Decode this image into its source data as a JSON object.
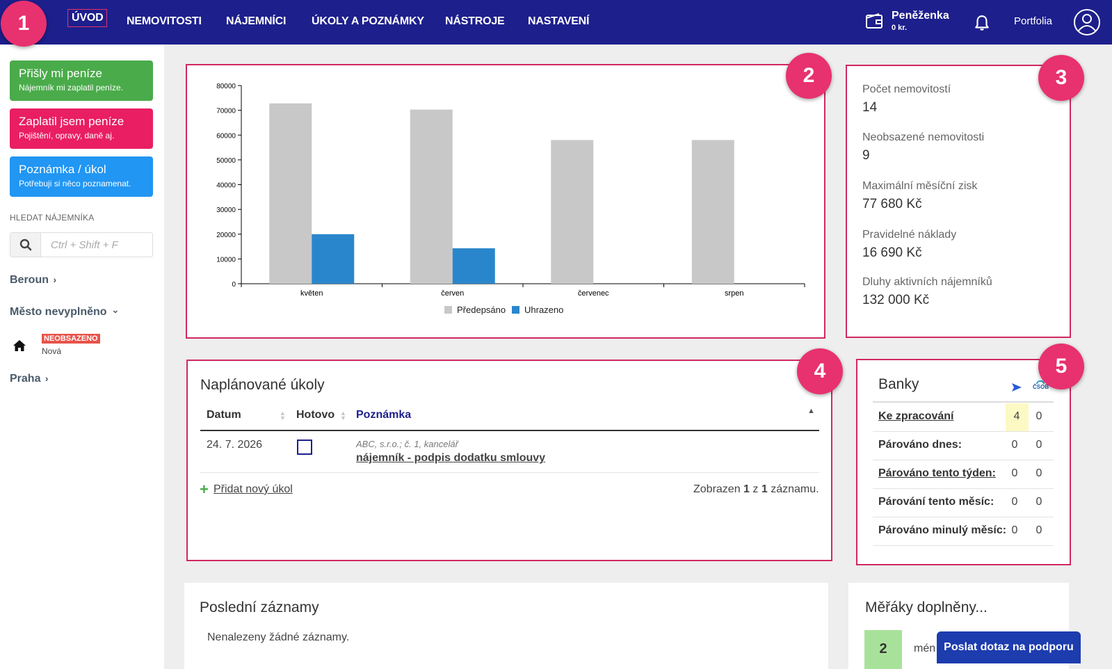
{
  "nav": {
    "items": [
      {
        "label": "ÚVOD",
        "active": true
      },
      {
        "label": "NEMOVITOSTI"
      },
      {
        "label": "NÁJEMNÍCI"
      },
      {
        "label": "ÚKOLY A POZNÁMKY"
      },
      {
        "label": "NÁSTROJE"
      },
      {
        "label": "NASTAVENÍ"
      }
    ],
    "wallet_title": "Peněženka",
    "wallet_amount": "0 kr.",
    "portfolia": "Portfolia"
  },
  "callouts": [
    "1",
    "2",
    "3",
    "4",
    "5"
  ],
  "sidebar": {
    "buttons": [
      {
        "title": "Přišly mi peníze",
        "subtitle": "Nájemník mi zaplatil peníze."
      },
      {
        "title": "Zaplatil jsem peníze",
        "subtitle": "Pojištění, opravy, daně aj."
      },
      {
        "title": "Poznámka / úkol",
        "subtitle": "Potřebuji si něco poznamenat."
      }
    ],
    "search_label": "HLEDAT NÁJEMNÍKA",
    "search_placeholder": "Ctrl + Shift + F",
    "cities": [
      {
        "name": "Beroun",
        "chevron": "›"
      },
      {
        "name": "Město nevyplněno",
        "chevron": "⌄"
      },
      {
        "name": "Praha",
        "chevron": "›"
      }
    ],
    "property": {
      "badge": "NEOBSAZENO",
      "name": "Nová"
    }
  },
  "chart_data": {
    "type": "bar",
    "categories": [
      "květen",
      "červen",
      "červenec",
      "srpen"
    ],
    "series": [
      {
        "name": "Předepsáno",
        "values": [
          72800,
          70300,
          58000,
          58000
        ],
        "color": "#c8c8c8"
      },
      {
        "name": "Uhrazeno",
        "values": [
          20000,
          14300,
          0,
          0
        ],
        "color": "#2a86cc"
      }
    ],
    "y_ticks": [
      "0",
      "10000",
      "20000",
      "30000",
      "40000",
      "50000",
      "60000",
      "70000",
      "80000"
    ],
    "ylim": [
      0,
      80000
    ],
    "legend": "bottom-center"
  },
  "stats": [
    {
      "label": "Počet nemovitostí",
      "value": "14",
      "color": "#333333"
    },
    {
      "label": "Neobsazené nemovitosti",
      "value": "9",
      "color": "#d81b30"
    },
    {
      "label": "Maximální měsíční zisk",
      "value": "77 680 Kč",
      "color": "#2e8b1e"
    },
    {
      "label": "Pravidelné náklady",
      "value": "16 690 Kč",
      "color": "#333333"
    },
    {
      "label": "Dluhy aktivních nájemníků",
      "value": "132 000 Kč",
      "color": "#d81b30"
    }
  ],
  "tasks": {
    "title": "Naplánované úkoly",
    "columns": [
      "Datum",
      "Hotovo",
      "Poznámka"
    ],
    "sort_indicator": "▲",
    "rows": [
      {
        "date": "24. 7. 2026",
        "done": false,
        "subtitle": "ABC, s.r.o.; č. 1, kancelář",
        "note": "nájemník - podpis dodatku smlouvy"
      }
    ],
    "add_label": "Přidat nový úkol",
    "showing_prefix": "Zobrazen",
    "showing_from": "1",
    "showing_mid": "z",
    "showing_total": "1",
    "showing_suffix": "záznamu."
  },
  "banks": {
    "title": "Banky",
    "rows": [
      {
        "label": "Ke zpracování",
        "v1": "4",
        "v2": "0",
        "link": true
      },
      {
        "label": "Párováno dnes:",
        "v1": "0",
        "v2": "0",
        "link": false
      },
      {
        "label": "Párováno tento týden:",
        "v1": "0",
        "v2": "0",
        "link": true
      },
      {
        "label": "Párování tento měsíc:",
        "v1": "0",
        "v2": "0",
        "link": false
      },
      {
        "label": "Párováno minulý měsíc:",
        "v1": "0",
        "v2": "0",
        "link": false
      }
    ],
    "bank2_logo_text": "ČSOB"
  },
  "recent": {
    "title": "Poslední záznamy",
    "empty": "Nenalezeny žádné záznamy."
  },
  "meters": {
    "title": "Měřáky doplněny...",
    "count": "2",
    "partial_text": "mén"
  },
  "support_button": "Poslat dotaz na podporu"
}
